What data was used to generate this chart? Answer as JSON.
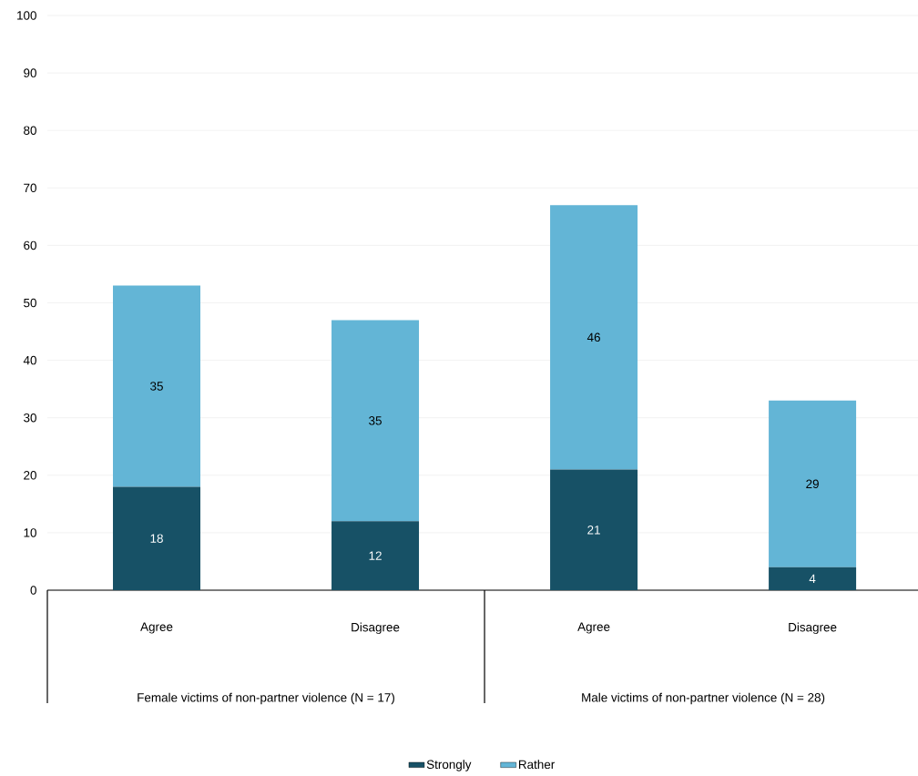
{
  "chart_data": {
    "type": "bar",
    "stacked": true,
    "categories": [
      "Agree",
      "Disagree",
      "Agree",
      "Disagree"
    ],
    "series": [
      {
        "name": "Strongly",
        "color": "#175166",
        "values": [
          18,
          12,
          21,
          4
        ]
      },
      {
        "name": "Rather",
        "color": "#63b5d6",
        "values": [
          35,
          35,
          46,
          29
        ]
      }
    ],
    "ylim": [
      0,
      100
    ],
    "yticks": [
      0,
      10,
      20,
      30,
      40,
      50,
      60,
      70,
      80,
      90,
      100
    ],
    "grid": "y",
    "legend": "bottom",
    "data_labels": true,
    "annotations": [
      "Female victims of non-partner violence (N = 17)",
      "Male victims of non-partner violence (N = 28)"
    ]
  }
}
